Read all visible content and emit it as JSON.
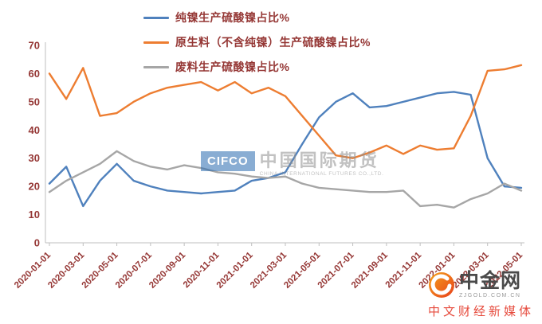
{
  "chart_data": {
    "type": "line",
    "title": "",
    "xlabel": "",
    "ylabel": "",
    "ylim": [
      0,
      70
    ],
    "y_tick_step": 10,
    "y_tick_labels": [
      "0",
      "10",
      "20",
      "30",
      "40",
      "50",
      "60",
      "70"
    ],
    "grid": false,
    "legend_position": "top",
    "axis_color": "#bfbfbf",
    "axis_text_color": "#953735",
    "x_months": [
      "2020-01",
      "2020-02",
      "2020-03",
      "2020-04",
      "2020-05",
      "2020-06",
      "2020-07",
      "2020-08",
      "2020-09",
      "2020-10",
      "2020-11",
      "2020-12",
      "2021-01",
      "2021-02",
      "2021-03",
      "2021-04",
      "2021-05",
      "2021-06",
      "2021-07",
      "2021-08",
      "2021-09",
      "2021-10",
      "2021-11",
      "2021-12",
      "2022-01",
      "2022-02",
      "2022-03",
      "2022-04",
      "2022-05"
    ],
    "x_tick_labels": [
      "2020-01-01",
      "2020-03-01",
      "2020-05-01",
      "2020-07-01",
      "2020-09-01",
      "2020-11-01",
      "2021-01-01",
      "2021-03-01",
      "2021-05-01",
      "2021-07-01",
      "2021-09-01",
      "2021-11-01",
      "2022-01-01",
      "2022-03-01",
      "2022-05-01"
    ],
    "series": [
      {
        "name": "纯镍生产硫酸镍占比%",
        "color": "#4f81bd",
        "values": [
          21,
          27,
          13,
          22,
          28,
          22,
          20,
          18.5,
          18,
          17.5,
          18,
          18.5,
          22,
          23,
          25,
          35,
          44.5,
          50,
          53,
          48,
          48.5,
          50,
          51.5,
          53,
          53.5,
          52.5,
          30,
          20,
          19.5
        ]
      },
      {
        "name": "原生料（不含纯镍）生产硫酸镍占比%",
        "color": "#ed7d31",
        "values": [
          60,
          51,
          62,
          45,
          46,
          50,
          53,
          55,
          56,
          57,
          54,
          57,
          53,
          55,
          52,
          45,
          38,
          31,
          30,
          32,
          34.5,
          31.5,
          34.5,
          33,
          33.5,
          45,
          61,
          61.5,
          63
        ]
      },
      {
        "name": "废料生产硫酸镍占比%",
        "color": "#a6a6a6",
        "values": [
          18,
          22,
          25,
          28,
          32.5,
          29,
          27,
          26,
          27.5,
          26.5,
          25,
          24.5,
          23.5,
          23,
          23.5,
          21,
          19.5,
          19,
          18.5,
          18,
          18,
          18.5,
          13,
          13.5,
          12.5,
          15.5,
          17.5,
          21,
          18.5
        ]
      }
    ]
  },
  "watermark": {
    "logo": "CIFCO",
    "name": "中国国际期货",
    "subtext": "CHINA INTERNATIONAL FUTURES CO.,LTD."
  },
  "brand": {
    "name": "中金网",
    "domain": "ZJGOLD.COM.CN",
    "tagline": "中文财经新媒体"
  }
}
